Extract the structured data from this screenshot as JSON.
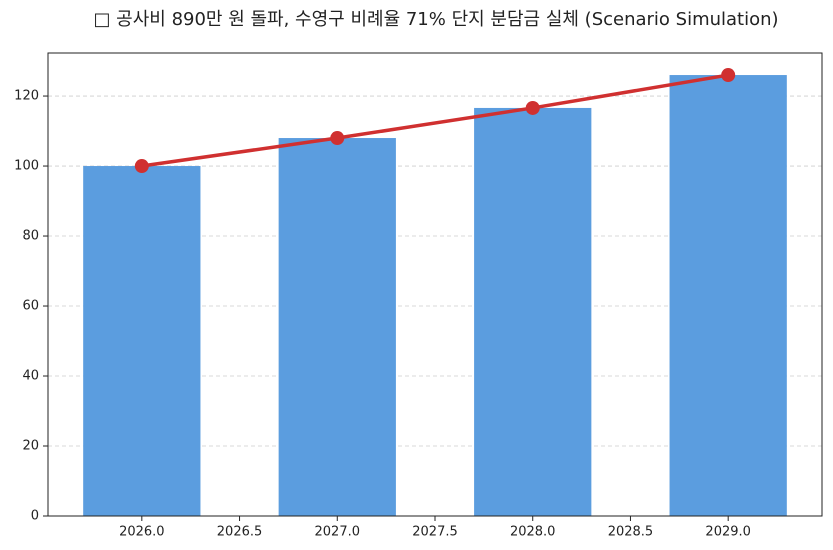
{
  "chart_data": {
    "type": "bar",
    "title": "□ 공사비 890만 원 돌파, 수영구 비례율 71% 단지 분담금 실체 (Scenario Simulation)",
    "x": [
      2026,
      2027,
      2028,
      2029
    ],
    "series": [
      {
        "type": "bar",
        "color": "#5b9ddf",
        "values": [
          100,
          108,
          116.6,
          126
        ]
      },
      {
        "type": "line",
        "color": "#d03030",
        "values": [
          100,
          108,
          116.6,
          126
        ]
      }
    ],
    "xlim": [
      2025.52,
      2029.48
    ],
    "xticks": [
      {
        "value": 2026,
        "label": "2026.0"
      },
      {
        "value": 2026.5,
        "label": "2026.5"
      },
      {
        "value": 2027,
        "label": "2027.0"
      },
      {
        "value": 2027.5,
        "label": "2027.5"
      },
      {
        "value": 2028,
        "label": "2028.0"
      },
      {
        "value": 2028.5,
        "label": "2028.5"
      },
      {
        "value": 2029,
        "label": "2029.0"
      }
    ],
    "ylim": [
      0,
      132.3
    ],
    "yticks": [
      0,
      20,
      40,
      60,
      80,
      100,
      120
    ],
    "grid": true
  }
}
